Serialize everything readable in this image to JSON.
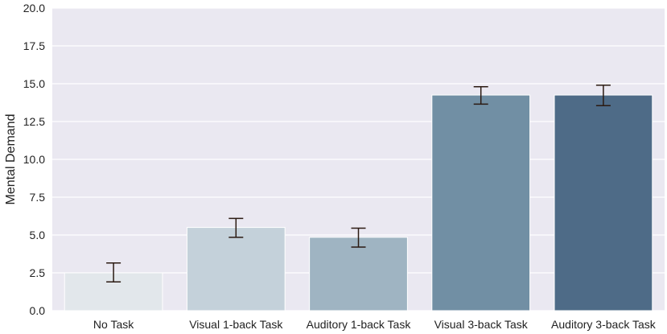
{
  "chart_data": {
    "type": "bar",
    "ylabel": "Mental Demand",
    "xlabel": "",
    "ylim": [
      0,
      20
    ],
    "yticks": [
      0.0,
      2.5,
      5.0,
      7.5,
      10.0,
      12.5,
      15.0,
      17.5,
      20.0
    ],
    "ytick_labels": [
      "0.0",
      "2.5",
      "5.0",
      "7.5",
      "10.0",
      "12.5",
      "15.0",
      "17.5",
      "20.0"
    ],
    "categories": [
      "No Task",
      "Visual 1-back Task",
      "Auditory 1-back Task",
      "Visual 3-back Task",
      "Auditory 3-back Task"
    ],
    "values": [
      2.5,
      5.5,
      4.85,
      14.25,
      14.25
    ],
    "error_low": [
      1.9,
      4.85,
      4.2,
      13.65,
      13.55
    ],
    "error_high": [
      3.15,
      6.1,
      5.45,
      14.8,
      14.9
    ],
    "grid": true,
    "background": "#eae8f1",
    "gridline_color": "#ffffff",
    "bar_colors": [
      "#e2e7eb",
      "#c4d1da",
      "#9fb4c2",
      "#718fa4",
      "#4e6b87"
    ],
    "errorbar_color": "#2b1a12"
  }
}
